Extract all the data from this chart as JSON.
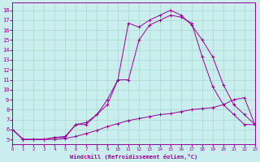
{
  "xlabel": "Windchill (Refroidissement éolien,°C)",
  "background_color": "#caeeed",
  "grid_color": "#a8d8cc",
  "line_color": "#990099",
  "xlim": [
    0,
    23
  ],
  "ylim": [
    4.5,
    18.8
  ],
  "xticks": [
    0,
    1,
    2,
    3,
    4,
    5,
    6,
    7,
    8,
    9,
    10,
    11,
    12,
    13,
    14,
    15,
    16,
    17,
    18,
    19,
    20,
    21,
    22,
    23
  ],
  "yticks": [
    5,
    6,
    7,
    8,
    9,
    10,
    11,
    12,
    13,
    14,
    15,
    16,
    17,
    18
  ],
  "line1_x": [
    0,
    1,
    2,
    3,
    4,
    5,
    6,
    7,
    8,
    9,
    10,
    11,
    12,
    13,
    14,
    15,
    16,
    17,
    18,
    19,
    20,
    21,
    22,
    23
  ],
  "line1_y": [
    6.0,
    5.0,
    5.0,
    5.0,
    5.0,
    5.1,
    5.3,
    5.6,
    5.9,
    6.3,
    6.6,
    6.9,
    7.1,
    7.3,
    7.5,
    7.6,
    7.8,
    8.0,
    8.1,
    8.2,
    8.5,
    9.0,
    9.2,
    6.5
  ],
  "line2_x": [
    0,
    1,
    2,
    3,
    4,
    5,
    6,
    7,
    8,
    9,
    10,
    11,
    12,
    13,
    14,
    15,
    16,
    17,
    18,
    19,
    20,
    21,
    22,
    23
  ],
  "line2_y": [
    6.0,
    5.0,
    5.0,
    5.0,
    5.2,
    5.2,
    6.5,
    6.5,
    7.5,
    9.0,
    11.0,
    11.0,
    15.0,
    16.5,
    17.0,
    17.5,
    17.3,
    16.7,
    13.3,
    10.3,
    8.5,
    7.5,
    6.5,
    6.5
  ],
  "line3_x": [
    0,
    1,
    2,
    3,
    4,
    5,
    6,
    7,
    8,
    9,
    10,
    11,
    12,
    13,
    14,
    15,
    16,
    17,
    18,
    19,
    20,
    21,
    22,
    23
  ],
  "line3_y": [
    6.0,
    5.0,
    5.0,
    5.0,
    5.2,
    5.3,
    6.5,
    6.7,
    7.5,
    8.5,
    11.0,
    16.7,
    16.3,
    17.0,
    17.5,
    18.0,
    17.5,
    16.5,
    15.0,
    13.3,
    10.5,
    8.5,
    7.5,
    6.5
  ]
}
